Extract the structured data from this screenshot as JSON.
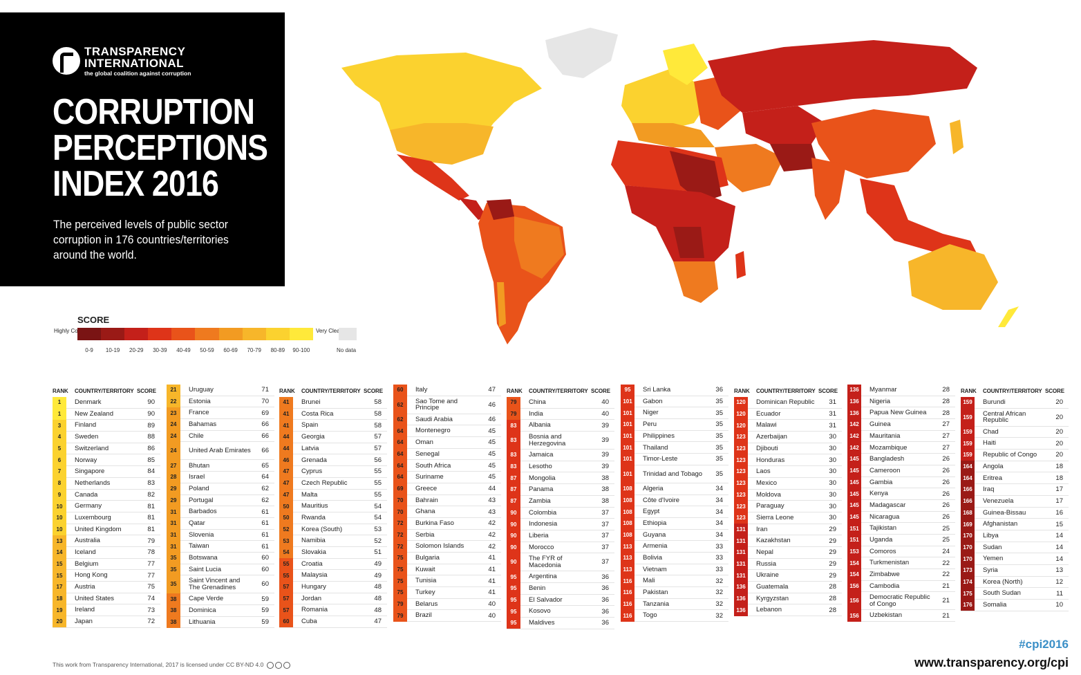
{
  "header": {
    "org_name_line1": "TRANSPARENCY",
    "org_name_line2": "INTERNATIONAL",
    "org_tagline": "the global coalition against corruption",
    "title_line1": "CORRUPTION",
    "title_line2": "PERCEPTIONS",
    "title_line3": "INDEX 2016",
    "subtitle": "The perceived levels of public sector corruption in 176 countries/territories around the world."
  },
  "legend": {
    "title": "SCORE",
    "low_label": "Highly Corrupt",
    "high_label": "Very Clean",
    "ranges": [
      "0-9",
      "10-19",
      "20-29",
      "30-39",
      "40-49",
      "50-59",
      "60-69",
      "70-79",
      "80-89",
      "90-100"
    ],
    "colors": [
      "#7a1414",
      "#9a1a16",
      "#c4201a",
      "#de3419",
      "#e9531a",
      "#ef7a1f",
      "#f29b22",
      "#f7b62a",
      "#fbd22f",
      "#ffe93a"
    ],
    "no_data_label": "No data",
    "no_data_color": "#e6e6e6"
  },
  "table_headers": {
    "rank": "RANK",
    "country": "COUNTRY/TERRITORY",
    "score": "SCORE"
  },
  "columns": [
    [
      [
        "1",
        "Denmark",
        "90"
      ],
      [
        "1",
        "New Zealand",
        "90"
      ],
      [
        "3",
        "Finland",
        "89"
      ],
      [
        "4",
        "Sweden",
        "88"
      ],
      [
        "5",
        "Switzerland",
        "86"
      ],
      [
        "6",
        "Norway",
        "85"
      ],
      [
        "7",
        "Singapore",
        "84"
      ],
      [
        "8",
        "Netherlands",
        "83"
      ],
      [
        "9",
        "Canada",
        "82"
      ],
      [
        "10",
        "Germany",
        "81"
      ],
      [
        "10",
        "Luxembourg",
        "81"
      ],
      [
        "10",
        "United Kingdom",
        "81"
      ],
      [
        "13",
        "Australia",
        "79"
      ],
      [
        "14",
        "Iceland",
        "78"
      ],
      [
        "15",
        "Belgium",
        "77"
      ],
      [
        "15",
        "Hong Kong",
        "77"
      ],
      [
        "17",
        "Austria",
        "75"
      ],
      [
        "18",
        "United States",
        "74"
      ],
      [
        "19",
        "Ireland",
        "73"
      ],
      [
        "20",
        "Japan",
        "72"
      ]
    ],
    [
      [
        "21",
        "Uruguay",
        "71"
      ],
      [
        "22",
        "Estonia",
        "70"
      ],
      [
        "23",
        "France",
        "69"
      ],
      [
        "24",
        "Bahamas",
        "66"
      ],
      [
        "24",
        "Chile",
        "66"
      ],
      [
        "24",
        "United Arab Emirates",
        "66"
      ],
      [
        "27",
        "Bhutan",
        "65"
      ],
      [
        "28",
        "Israel",
        "64"
      ],
      [
        "29",
        "Poland",
        "62"
      ],
      [
        "29",
        "Portugal",
        "62"
      ],
      [
        "31",
        "Barbados",
        "61"
      ],
      [
        "31",
        "Qatar",
        "61"
      ],
      [
        "31",
        "Slovenia",
        "61"
      ],
      [
        "31",
        "Taiwan",
        "61"
      ],
      [
        "35",
        "Botswana",
        "60"
      ],
      [
        "35",
        "Saint Lucia",
        "60"
      ],
      [
        "35",
        "Saint Vincent and The Grenadines",
        "60"
      ],
      [
        "38",
        "Cape Verde",
        "59"
      ],
      [
        "38",
        "Dominica",
        "59"
      ],
      [
        "38",
        "Lithuania",
        "59"
      ]
    ],
    [
      [
        "41",
        "Brunei",
        "58"
      ],
      [
        "41",
        "Costa Rica",
        "58"
      ],
      [
        "41",
        "Spain",
        "58"
      ],
      [
        "44",
        "Georgia",
        "57"
      ],
      [
        "44",
        "Latvia",
        "57"
      ],
      [
        "46",
        "Grenada",
        "56"
      ],
      [
        "47",
        "Cyprus",
        "55"
      ],
      [
        "47",
        "Czech Republic",
        "55"
      ],
      [
        "47",
        "Malta",
        "55"
      ],
      [
        "50",
        "Mauritius",
        "54"
      ],
      [
        "50",
        "Rwanda",
        "54"
      ],
      [
        "52",
        "Korea (South)",
        "53"
      ],
      [
        "53",
        "Namibia",
        "52"
      ],
      [
        "54",
        "Slovakia",
        "51"
      ],
      [
        "55",
        "Croatia",
        "49"
      ],
      [
        "55",
        "Malaysia",
        "49"
      ],
      [
        "57",
        "Hungary",
        "48"
      ],
      [
        "57",
        "Jordan",
        "48"
      ],
      [
        "57",
        "Romania",
        "48"
      ],
      [
        "60",
        "Cuba",
        "47"
      ]
    ],
    [
      [
        "60",
        "Italy",
        "47"
      ],
      [
        "62",
        "Sao Tome and Principe",
        "46"
      ],
      [
        "62",
        "Saudi Arabia",
        "46"
      ],
      [
        "64",
        "Montenegro",
        "45"
      ],
      [
        "64",
        "Oman",
        "45"
      ],
      [
        "64",
        "Senegal",
        "45"
      ],
      [
        "64",
        "South Africa",
        "45"
      ],
      [
        "64",
        "Suriname",
        "45"
      ],
      [
        "69",
        "Greece",
        "44"
      ],
      [
        "70",
        "Bahrain",
        "43"
      ],
      [
        "70",
        "Ghana",
        "43"
      ],
      [
        "72",
        "Burkina Faso",
        "42"
      ],
      [
        "72",
        "Serbia",
        "42"
      ],
      [
        "72",
        "Solomon Islands",
        "42"
      ],
      [
        "75",
        "Bulgaria",
        "41"
      ],
      [
        "75",
        "Kuwait",
        "41"
      ],
      [
        "75",
        "Tunisia",
        "41"
      ],
      [
        "75",
        "Turkey",
        "41"
      ],
      [
        "79",
        "Belarus",
        "40"
      ],
      [
        "79",
        "Brazil",
        "40"
      ]
    ],
    [
      [
        "79",
        "China",
        "40"
      ],
      [
        "79",
        "India",
        "40"
      ],
      [
        "83",
        "Albania",
        "39"
      ],
      [
        "83",
        "Bosnia and Herzegovina",
        "39"
      ],
      [
        "83",
        "Jamaica",
        "39"
      ],
      [
        "83",
        "Lesotho",
        "39"
      ],
      [
        "87",
        "Mongolia",
        "38"
      ],
      [
        "87",
        "Panama",
        "38"
      ],
      [
        "87",
        "Zambia",
        "38"
      ],
      [
        "90",
        "Colombia",
        "37"
      ],
      [
        "90",
        "Indonesia",
        "37"
      ],
      [
        "90",
        "Liberia",
        "37"
      ],
      [
        "90",
        "Morocco",
        "37"
      ],
      [
        "90",
        "The FYR of Macedonia",
        "37"
      ],
      [
        "95",
        "Argentina",
        "36"
      ],
      [
        "95",
        "Benin",
        "36"
      ],
      [
        "95",
        "El Salvador",
        "36"
      ],
      [
        "95",
        "Kosovo",
        "36"
      ],
      [
        "95",
        "Maldives",
        "36"
      ]
    ],
    [
      [
        "95",
        "Sri Lanka",
        "36"
      ],
      [
        "101",
        "Gabon",
        "35"
      ],
      [
        "101",
        "Niger",
        "35"
      ],
      [
        "101",
        "Peru",
        "35"
      ],
      [
        "101",
        "Philippines",
        "35"
      ],
      [
        "101",
        "Thailand",
        "35"
      ],
      [
        "101",
        "Timor-Leste",
        "35"
      ],
      [
        "101",
        "Trinidad and Tobago",
        "35"
      ],
      [
        "108",
        "Algeria",
        "34"
      ],
      [
        "108",
        "Côte d'Ivoire",
        "34"
      ],
      [
        "108",
        "Egypt",
        "34"
      ],
      [
        "108",
        "Ethiopia",
        "34"
      ],
      [
        "108",
        "Guyana",
        "34"
      ],
      [
        "113",
        "Armenia",
        "33"
      ],
      [
        "113",
        "Bolivia",
        "33"
      ],
      [
        "113",
        "Vietnam",
        "33"
      ],
      [
        "116",
        "Mali",
        "32"
      ],
      [
        "116",
        "Pakistan",
        "32"
      ],
      [
        "116",
        "Tanzania",
        "32"
      ],
      [
        "116",
        "Togo",
        "32"
      ]
    ],
    [
      [
        "120",
        "Dominican Republic",
        "31"
      ],
      [
        "120",
        "Ecuador",
        "31"
      ],
      [
        "120",
        "Malawi",
        "31"
      ],
      [
        "123",
        "Azerbaijan",
        "30"
      ],
      [
        "123",
        "Djibouti",
        "30"
      ],
      [
        "123",
        "Honduras",
        "30"
      ],
      [
        "123",
        "Laos",
        "30"
      ],
      [
        "123",
        "Mexico",
        "30"
      ],
      [
        "123",
        "Moldova",
        "30"
      ],
      [
        "123",
        "Paraguay",
        "30"
      ],
      [
        "123",
        "Sierra Leone",
        "30"
      ],
      [
        "131",
        "Iran",
        "29"
      ],
      [
        "131",
        "Kazakhstan",
        "29"
      ],
      [
        "131",
        "Nepal",
        "29"
      ],
      [
        "131",
        "Russia",
        "29"
      ],
      [
        "131",
        "Ukraine",
        "29"
      ],
      [
        "136",
        "Guatemala",
        "28"
      ],
      [
        "136",
        "Kyrgyzstan",
        "28"
      ],
      [
        "136",
        "Lebanon",
        "28"
      ]
    ],
    [
      [
        "136",
        "Myanmar",
        "28"
      ],
      [
        "136",
        "Nigeria",
        "28"
      ],
      [
        "136",
        "Papua New Guinea",
        "28"
      ],
      [
        "142",
        "Guinea",
        "27"
      ],
      [
        "142",
        "Mauritania",
        "27"
      ],
      [
        "142",
        "Mozambique",
        "27"
      ],
      [
        "145",
        "Bangladesh",
        "26"
      ],
      [
        "145",
        "Cameroon",
        "26"
      ],
      [
        "145",
        "Gambia",
        "26"
      ],
      [
        "145",
        "Kenya",
        "26"
      ],
      [
        "145",
        "Madagascar",
        "26"
      ],
      [
        "145",
        "Nicaragua",
        "26"
      ],
      [
        "151",
        "Tajikistan",
        "25"
      ],
      [
        "151",
        "Uganda",
        "25"
      ],
      [
        "153",
        "Comoros",
        "24"
      ],
      [
        "154",
        "Turkmenistan",
        "22"
      ],
      [
        "154",
        "Zimbabwe",
        "22"
      ],
      [
        "156",
        "Cambodia",
        "21"
      ],
      [
        "156",
        "Democratic Republic of Congo",
        "21"
      ],
      [
        "156",
        "Uzbekistan",
        "21"
      ]
    ],
    [
      [
        "159",
        "Burundi",
        "20"
      ],
      [
        "159",
        "Central African Republic",
        "20"
      ],
      [
        "159",
        "Chad",
        "20"
      ],
      [
        "159",
        "Haiti",
        "20"
      ],
      [
        "159",
        "Republic of Congo",
        "20"
      ],
      [
        "164",
        "Angola",
        "18"
      ],
      [
        "164",
        "Eritrea",
        "18"
      ],
      [
        "166",
        "Iraq",
        "17"
      ],
      [
        "166",
        "Venezuela",
        "17"
      ],
      [
        "168",
        "Guinea-Bissau",
        "16"
      ],
      [
        "169",
        "Afghanistan",
        "15"
      ],
      [
        "170",
        "Libya",
        "14"
      ],
      [
        "170",
        "Sudan",
        "14"
      ],
      [
        "170",
        "Yemen",
        "14"
      ],
      [
        "173",
        "Syria",
        "13"
      ],
      [
        "174",
        "Korea (North)",
        "12"
      ],
      [
        "175",
        "South Sudan",
        "11"
      ],
      [
        "176",
        "Somalia",
        "10"
      ]
    ]
  ],
  "footer": {
    "license": "This work from Transparency International, 2017 is licensed under CC BY-ND 4.0",
    "hashtag": "#cpi2016",
    "website": "www.transparency.org/cpi"
  }
}
